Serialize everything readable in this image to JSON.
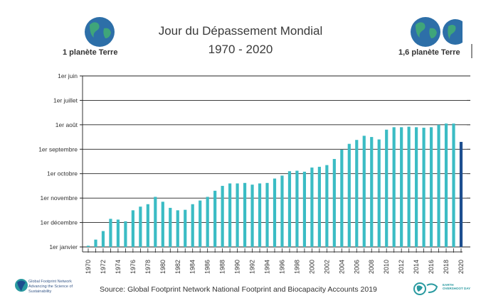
{
  "header": {
    "title_line1": "Jour du Dépassement Mondial",
    "title_line2": "1970 - 2020",
    "left_caption": "1 planète Terre",
    "right_caption": "1,6 planète Terre",
    "left_icon": "earth-globe-icon",
    "right_icon": "earth-globes-icon"
  },
  "footer": {
    "source": "Source: Global Footprint Network National Footprint and Biocapacity Accounts 2019",
    "left_logo_text": "Global Footprint Network",
    "left_logo_tagline": "Advancing the Science of Sustainability",
    "right_logo_text": "EARTH OVERSHOOT DAY"
  },
  "colors": {
    "bar": "#3bbcc4",
    "bar_highlight": "#1d4e8f",
    "grid": "#222222",
    "axis_text": "#333333"
  },
  "chart_data": {
    "type": "bar",
    "title": "Jour du Dépassement Mondial 1970 - 2020",
    "xlabel": "",
    "ylabel": "",
    "y_unit": "months before end of year that overshoot occurs (0 = 1er janvier)",
    "ylim": [
      0,
      7
    ],
    "y_ticks": [
      {
        "value": 0,
        "label": "1er janvier"
      },
      {
        "value": 1,
        "label": "1er décembre"
      },
      {
        "value": 2,
        "label": "1er novembre"
      },
      {
        "value": 3,
        "label": "1er octobre"
      },
      {
        "value": 4,
        "label": "1er septembre"
      },
      {
        "value": 5,
        "label": "1er août"
      },
      {
        "value": 6,
        "label": "1er juillet"
      },
      {
        "value": 7,
        "label": "1er juin"
      }
    ],
    "x_tick_labels": [
      "1970",
      "1972",
      "1974",
      "1976",
      "1978",
      "1980",
      "1982",
      "1984",
      "1986",
      "1988",
      "1990",
      "1992",
      "1994",
      "1996",
      "1998",
      "2000",
      "2002",
      "2004",
      "2006",
      "2008",
      "2010",
      "2012",
      "2014",
      "2016",
      "2018",
      "2020"
    ],
    "categories": [
      "1970",
      "1971",
      "1972",
      "1973",
      "1974",
      "1975",
      "1976",
      "1977",
      "1978",
      "1979",
      "1980",
      "1981",
      "1982",
      "1983",
      "1984",
      "1985",
      "1986",
      "1987",
      "1988",
      "1989",
      "1990",
      "1991",
      "1992",
      "1993",
      "1994",
      "1995",
      "1996",
      "1997",
      "1998",
      "1999",
      "2000",
      "2001",
      "2002",
      "2003",
      "2004",
      "2005",
      "2006",
      "2007",
      "2008",
      "2009",
      "2010",
      "2011",
      "2012",
      "2013",
      "2014",
      "2015",
      "2016",
      "2017",
      "2018",
      "2019",
      "2020"
    ],
    "values": [
      0.05,
      0.3,
      0.65,
      1.15,
      1.12,
      1.05,
      1.5,
      1.65,
      1.75,
      2.05,
      1.85,
      1.6,
      1.5,
      1.52,
      1.75,
      1.9,
      2.05,
      2.3,
      2.5,
      2.6,
      2.6,
      2.62,
      2.55,
      2.6,
      2.62,
      2.8,
      2.92,
      3.1,
      3.12,
      3.08,
      3.25,
      3.28,
      3.35,
      3.6,
      3.98,
      4.22,
      4.38,
      4.55,
      4.5,
      4.4,
      4.8,
      4.9,
      4.9,
      4.92,
      4.9,
      4.88,
      4.9,
      5.0,
      5.05,
      5.05,
      4.3
    ],
    "highlight_category": "2020",
    "grid": true
  }
}
